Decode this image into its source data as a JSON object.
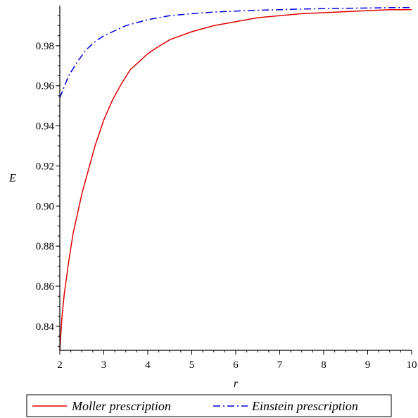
{
  "chart_data": {
    "type": "line",
    "xlabel": "r",
    "ylabel": "E",
    "xlim": [
      2,
      10
    ],
    "ylim": [
      0.828,
      1.0
    ],
    "xticks": [
      2,
      3,
      4,
      5,
      6,
      7,
      8,
      9,
      10
    ],
    "yticks": [
      0.84,
      0.86,
      0.88,
      0.9,
      0.92,
      0.94,
      0.96,
      0.98
    ],
    "ytick_labels": [
      "0.84",
      "0.86",
      "0.88",
      "0.90",
      "0.92",
      "0.94",
      "0.96",
      "0.98"
    ],
    "grid": false,
    "legend_position": "bottom",
    "series": [
      {
        "name": "Moller prescription",
        "color": "#e00000",
        "style": "solid",
        "x": [
          2.0,
          2.05,
          2.1,
          2.2,
          2.3,
          2.4,
          2.5,
          2.6,
          2.8,
          3.0,
          3.2,
          3.4,
          3.6,
          3.8,
          4.0,
          4.2,
          4.5,
          5.0,
          5.5,
          6.0,
          6.5,
          7.0,
          7.5,
          8.0,
          8.5,
          9.0,
          9.5,
          10.0
        ],
        "y": [
          0.828,
          0.845,
          0.856,
          0.872,
          0.886,
          0.896,
          0.906,
          0.914,
          0.93,
          0.943,
          0.953,
          0.961,
          0.968,
          0.972,
          0.976,
          0.979,
          0.983,
          0.987,
          0.99,
          0.992,
          0.994,
          0.995,
          0.996,
          0.9965,
          0.997,
          0.9975,
          0.998,
          0.998
        ]
      },
      {
        "name": "Einstein prescription",
        "color": "#0000dd",
        "style": "dashdot",
        "x": [
          2.0,
          2.2,
          2.4,
          2.6,
          2.8,
          3.0,
          3.2,
          3.5,
          4.0,
          4.5,
          5.0,
          5.5,
          6.0,
          6.5,
          7.0,
          7.5,
          8.0,
          8.5,
          9.0,
          9.5,
          10.0
        ],
        "y": [
          0.954,
          0.965,
          0.972,
          0.978,
          0.982,
          0.985,
          0.987,
          0.99,
          0.993,
          0.995,
          0.996,
          0.9968,
          0.9973,
          0.9977,
          0.998,
          0.9983,
          0.9985,
          0.9987,
          0.9988,
          0.999,
          0.999
        ]
      }
    ]
  }
}
